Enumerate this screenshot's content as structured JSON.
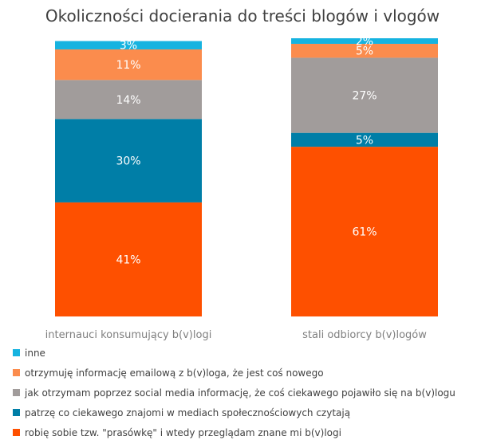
{
  "chart_data": {
    "type": "bar",
    "stacked": true,
    "title": "Okoliczności docierania do treści blogów i vlogów",
    "xlabel": "",
    "ylabel": "",
    "ylim": [
      0,
      100
    ],
    "grid": false,
    "legend_position": "bottom",
    "categories": [
      "internauci konsumujący b(v)logi",
      "stali odbiorcy b(v)logów"
    ],
    "series": [
      {
        "name": "robię sobie tzw. \"prasówkę\" i wtedy przeglądam znane mi b(v)logi",
        "color": "#fe5000",
        "values": [
          41,
          61
        ],
        "labels": [
          "41%",
          "61%"
        ]
      },
      {
        "name": "patrzę co ciekawego znajomi w mediach społecznościowych czytają",
        "color": "#007ea7",
        "values": [
          30,
          5
        ],
        "labels": [
          "30%",
          "5%"
        ]
      },
      {
        "name": "jak otrzymam poprzez social media informację, że coś ciekawego pojawiło się na b(v)logu",
        "color": "#a19c9b",
        "values": [
          14,
          27
        ],
        "labels": [
          "14%",
          "27%"
        ]
      },
      {
        "name": "otrzymuję informację emailową z b(v)loga, że jest coś nowego",
        "color": "#fb8c4d",
        "values": [
          11,
          5
        ],
        "labels": [
          "11%",
          "5%"
        ]
      },
      {
        "name": "inne",
        "color": "#16b3e0",
        "values": [
          3,
          2
        ],
        "labels": [
          "3%",
          "2%"
        ]
      }
    ],
    "legend_order": [
      4,
      3,
      2,
      1,
      0
    ]
  }
}
